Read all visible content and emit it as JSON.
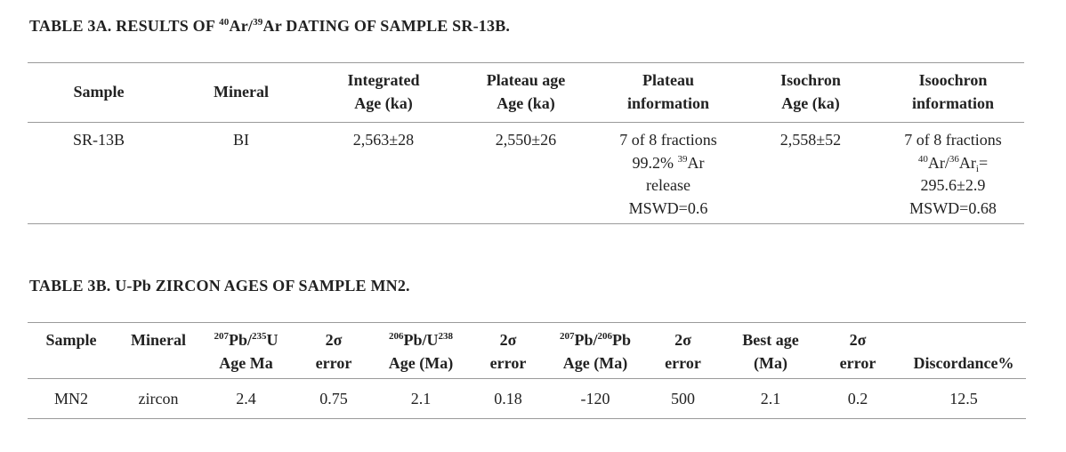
{
  "table_3a": {
    "title": [
      "TABLE 3A. RESULTS OF ",
      "40",
      "Ar/",
      "39",
      "Ar DATING OF SAMPLE SR-13B."
    ],
    "headers": [
      [
        "Sample"
      ],
      [
        "Mineral"
      ],
      [
        "Integrated",
        "Age (ka)"
      ],
      [
        "Plateau age",
        "Age (ka)"
      ],
      [
        "Plateau",
        "information"
      ],
      [
        "Isochron",
        "Age (ka)"
      ],
      [
        "Isoochron",
        "information"
      ]
    ],
    "rows": [
      [
        "SR-13B",
        "BI",
        "2,563±28",
        "2,550±26",
        [
          "7 of 8 fractions",
          "99.2%",
          "39",
          "Ar",
          "release",
          "MSWD=0.6"
        ],
        "2,558±52",
        [
          "7 of 8 fractions",
          "40",
          "Ar/",
          "36",
          "Ar",
          "i",
          "=",
          "295.6±2.9",
          "MSWD=0.68"
        ]
      ]
    ]
  },
  "table_3b": {
    "title": "TABLE 3B. U-Pb ZIRCON AGES OF SAMPLE MN2.",
    "headers": [
      [
        "Sample"
      ],
      [
        "Mineral"
      ],
      [
        "207",
        "Pb/",
        "235",
        "U",
        "Age Ma"
      ],
      [
        "2σ",
        "error"
      ],
      [
        "206",
        "Pb/U",
        "238",
        "Age (Ma)"
      ],
      [
        "2σ",
        "error"
      ],
      [
        "207",
        "Pb/",
        "206",
        "Pb",
        "Age (Ma)"
      ],
      [
        "2σ",
        "error"
      ],
      [
        "Best age",
        "(Ma)"
      ],
      [
        "2σ",
        "error"
      ],
      [
        "Discordance%"
      ]
    ],
    "rows": [
      [
        "MN2",
        "zircon",
        "2.4",
        "0.75",
        "2.1",
        "0.18",
        "-120",
        "500",
        "2.1",
        "0.2",
        "12.5"
      ]
    ]
  }
}
